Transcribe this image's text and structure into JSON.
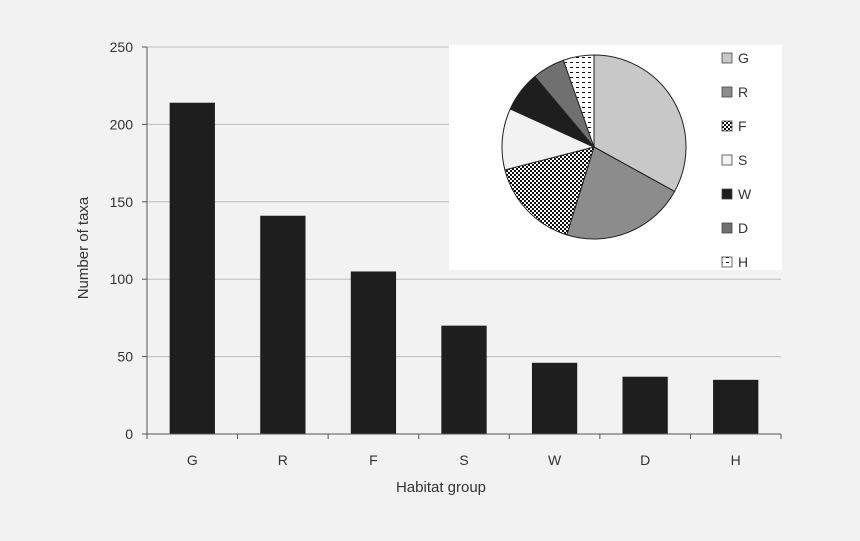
{
  "chart_data": [
    {
      "type": "bar",
      "categories": [
        "G",
        "R",
        "F",
        "S",
        "W",
        "D",
        "H"
      ],
      "values": [
        214,
        141,
        105,
        70,
        46,
        37,
        35
      ],
      "title": "",
      "xlabel": "Habitat group",
      "ylabel": "Number of taxa",
      "ylim": [
        0,
        250
      ],
      "yticks": [
        0,
        50,
        100,
        150,
        200,
        250
      ],
      "grid": true,
      "bar_color": "#1e1e1e",
      "grid_color": "#bdbdbd"
    },
    {
      "type": "pie",
      "categories": [
        "G",
        "R",
        "F",
        "S",
        "W",
        "D",
        "H"
      ],
      "values": [
        214,
        141,
        105,
        70,
        46,
        37,
        35
      ],
      "legend_placement": "right",
      "slice_styles": [
        {
          "fill": "#c8c8c8",
          "pattern": "solid"
        },
        {
          "fill": "#8c8c8c",
          "pattern": "solid"
        },
        {
          "fill": "#ffffff",
          "pattern": "checker"
        },
        {
          "fill": "#f2f2f2",
          "pattern": "solid"
        },
        {
          "fill": "#1e1e1e",
          "pattern": "solid"
        },
        {
          "fill": "#707070",
          "pattern": "solid"
        },
        {
          "fill": "#ffffff",
          "pattern": "dashes"
        }
      ]
    }
  ]
}
